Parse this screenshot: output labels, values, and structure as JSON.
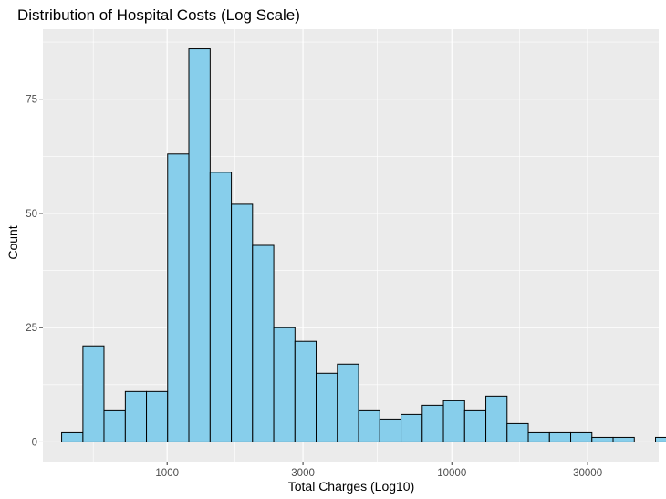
{
  "chart_data": {
    "type": "bar",
    "title": "Distribution of Hospital Costs (Log Scale)",
    "xlabel": "Total Charges (Log10)",
    "ylabel": "Count",
    "x_scale": "log10",
    "x_major_ticks": [
      1000,
      3000,
      10000,
      30000
    ],
    "x_major_tick_labels": [
      "1000",
      "3000",
      "10000",
      "30000"
    ],
    "x_minor_ticks": [
      550,
      1732,
      5477,
      17320
    ],
    "xlim": [
      366,
      53300
    ],
    "y_ticks": [
      0,
      25,
      50,
      75
    ],
    "y_tick_labels": [
      "0",
      "25",
      "50",
      "75"
    ],
    "ylim": [
      -4.3,
      90.3
    ],
    "grid": true,
    "bar_fill": "#87CEEB",
    "bar_outline": "#000000",
    "panel_background": "#EBEBEB",
    "grid_color": "#FFFFFF",
    "bins": [
      {
        "x_start": 426,
        "x_end": 506,
        "count": 2
      },
      {
        "x_start": 506,
        "x_end": 600,
        "count": 21
      },
      {
        "x_start": 600,
        "x_end": 713,
        "count": 7
      },
      {
        "x_start": 713,
        "x_end": 846,
        "count": 11
      },
      {
        "x_start": 846,
        "x_end": 1004,
        "count": 11
      },
      {
        "x_start": 1004,
        "x_end": 1192,
        "count": 63
      },
      {
        "x_start": 1192,
        "x_end": 1416,
        "count": 86
      },
      {
        "x_start": 1416,
        "x_end": 1681,
        "count": 59
      },
      {
        "x_start": 1681,
        "x_end": 1995,
        "count": 52
      },
      {
        "x_start": 1995,
        "x_end": 2369,
        "count": 43
      },
      {
        "x_start": 2369,
        "x_end": 2812,
        "count": 25
      },
      {
        "x_start": 2812,
        "x_end": 3338,
        "count": 22
      },
      {
        "x_start": 3338,
        "x_end": 3963,
        "count": 15
      },
      {
        "x_start": 3963,
        "x_end": 4705,
        "count": 17
      },
      {
        "x_start": 4705,
        "x_end": 5585,
        "count": 7
      },
      {
        "x_start": 5585,
        "x_end": 6630,
        "count": 5
      },
      {
        "x_start": 6630,
        "x_end": 7871,
        "count": 6
      },
      {
        "x_start": 7871,
        "x_end": 9344,
        "count": 8
      },
      {
        "x_start": 9344,
        "x_end": 11093,
        "count": 9
      },
      {
        "x_start": 11093,
        "x_end": 13169,
        "count": 7
      },
      {
        "x_start": 13169,
        "x_end": 15633,
        "count": 10
      },
      {
        "x_start": 15633,
        "x_end": 18559,
        "count": 4
      },
      {
        "x_start": 18559,
        "x_end": 22032,
        "count": 2
      },
      {
        "x_start": 22032,
        "x_end": 26155,
        "count": 2
      },
      {
        "x_start": 26155,
        "x_end": 31050,
        "count": 2
      },
      {
        "x_start": 31050,
        "x_end": 36861,
        "count": 1
      },
      {
        "x_start": 36861,
        "x_end": 43758,
        "count": 1
      },
      {
        "x_start": 43758,
        "x_end": 51947,
        "count": 0
      },
      {
        "x_start": 51947,
        "x_end": 61668,
        "count": 1
      }
    ]
  }
}
